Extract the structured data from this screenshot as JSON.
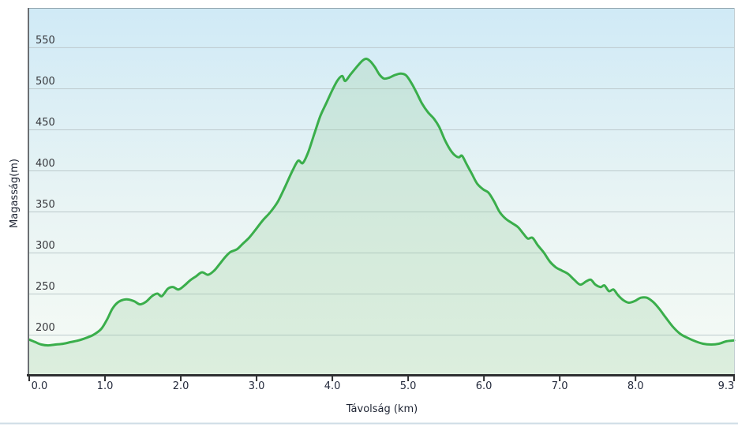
{
  "chart_data": {
    "type": "area",
    "title": "",
    "xlabel": "Távolság (km)",
    "ylabel": "Magasság(m)",
    "x_tick_labels": [
      "0.0",
      "1.0",
      "2.0",
      "3.0",
      "4.0",
      "5.0",
      "6.0",
      "7.0",
      "8.0",
      "9.3"
    ],
    "x_tick_values": [
      0,
      1,
      2,
      3,
      4,
      5,
      6,
      7,
      8,
      9.3
    ],
    "y_tick_values": [
      200,
      250,
      300,
      350,
      400,
      450,
      500,
      550
    ],
    "xlim": [
      0,
      9.3
    ],
    "ylim": [
      152,
      598
    ],
    "grid": "horizontal-only",
    "legend": "none",
    "series": [
      {
        "name": "elevation-profile",
        "points": [
          [
            0.0,
            194
          ],
          [
            0.08,
            191
          ],
          [
            0.16,
            188
          ],
          [
            0.25,
            187
          ],
          [
            0.35,
            188
          ],
          [
            0.45,
            189
          ],
          [
            0.55,
            191
          ],
          [
            0.65,
            193
          ],
          [
            0.75,
            196
          ],
          [
            0.85,
            200
          ],
          [
            0.95,
            207
          ],
          [
            1.03,
            219
          ],
          [
            1.1,
            232
          ],
          [
            1.18,
            240
          ],
          [
            1.28,
            243
          ],
          [
            1.38,
            241
          ],
          [
            1.46,
            237
          ],
          [
            1.54,
            240
          ],
          [
            1.62,
            247
          ],
          [
            1.69,
            250
          ],
          [
            1.75,
            247
          ],
          [
            1.83,
            256
          ],
          [
            1.9,
            258
          ],
          [
            1.97,
            255
          ],
          [
            2.05,
            260
          ],
          [
            2.12,
            266
          ],
          [
            2.2,
            271
          ],
          [
            2.28,
            276
          ],
          [
            2.36,
            273
          ],
          [
            2.44,
            278
          ],
          [
            2.52,
            287
          ],
          [
            2.6,
            296
          ],
          [
            2.66,
            301
          ],
          [
            2.74,
            304
          ],
          [
            2.82,
            311
          ],
          [
            2.9,
            318
          ],
          [
            2.98,
            327
          ],
          [
            3.08,
            339
          ],
          [
            3.18,
            349
          ],
          [
            3.28,
            362
          ],
          [
            3.38,
            381
          ],
          [
            3.48,
            401
          ],
          [
            3.55,
            412
          ],
          [
            3.61,
            409
          ],
          [
            3.68,
            422
          ],
          [
            3.76,
            444
          ],
          [
            3.84,
            466
          ],
          [
            3.92,
            482
          ],
          [
            4.0,
            498
          ],
          [
            4.07,
            510
          ],
          [
            4.13,
            515
          ],
          [
            4.17,
            509
          ],
          [
            4.24,
            517
          ],
          [
            4.32,
            526
          ],
          [
            4.4,
            534
          ],
          [
            4.45,
            536
          ],
          [
            4.5,
            533
          ],
          [
            4.56,
            526
          ],
          [
            4.62,
            517
          ],
          [
            4.68,
            512
          ],
          [
            4.75,
            513
          ],
          [
            4.82,
            516
          ],
          [
            4.9,
            518
          ],
          [
            4.97,
            516
          ],
          [
            5.04,
            507
          ],
          [
            5.11,
            495
          ],
          [
            5.18,
            482
          ],
          [
            5.26,
            471
          ],
          [
            5.34,
            463
          ],
          [
            5.41,
            453
          ],
          [
            5.48,
            438
          ],
          [
            5.55,
            426
          ],
          [
            5.61,
            419
          ],
          [
            5.67,
            416
          ],
          [
            5.71,
            418
          ],
          [
            5.77,
            408
          ],
          [
            5.84,
            396
          ],
          [
            5.91,
            384
          ],
          [
            5.99,
            377
          ],
          [
            6.06,
            373
          ],
          [
            6.13,
            363
          ],
          [
            6.21,
            349
          ],
          [
            6.29,
            341
          ],
          [
            6.37,
            336
          ],
          [
            6.45,
            331
          ],
          [
            6.52,
            323
          ],
          [
            6.58,
            317
          ],
          [
            6.64,
            318
          ],
          [
            6.71,
            309
          ],
          [
            6.79,
            300
          ],
          [
            6.87,
            289
          ],
          [
            6.95,
            282
          ],
          [
            7.03,
            278
          ],
          [
            7.11,
            274
          ],
          [
            7.19,
            267
          ],
          [
            7.27,
            261
          ],
          [
            7.35,
            265
          ],
          [
            7.41,
            267
          ],
          [
            7.47,
            261
          ],
          [
            7.54,
            258
          ],
          [
            7.59,
            260
          ],
          [
            7.65,
            253
          ],
          [
            7.71,
            255
          ],
          [
            7.77,
            248
          ],
          [
            7.84,
            242
          ],
          [
            7.91,
            239
          ],
          [
            7.99,
            241
          ],
          [
            8.07,
            245
          ],
          [
            8.15,
            245
          ],
          [
            8.23,
            240
          ],
          [
            8.31,
            232
          ],
          [
            8.39,
            222
          ],
          [
            8.49,
            210
          ],
          [
            8.59,
            201
          ],
          [
            8.69,
            196
          ],
          [
            8.79,
            192
          ],
          [
            8.89,
            189
          ],
          [
            9.0,
            188
          ],
          [
            9.1,
            189
          ],
          [
            9.2,
            192
          ],
          [
            9.3,
            193
          ]
        ]
      }
    ],
    "colors": {
      "line": "#3aae4b",
      "area_fill": "rgba(160,210,165,0.30)",
      "plot_bg_top": "#d0eaf6",
      "plot_bg_mid": "#e9f4f4",
      "plot_bg_bottom": "#f6fbf5",
      "gridline": "#bcc9cc",
      "axis_left": "#6b6f73",
      "axis_bottom": "#2e2f31",
      "border_top": "#8fa3ab",
      "border_right": "#c2ced2",
      "x_tick_text": "#242a3c",
      "y_tick_text": "#37383c",
      "axis_title_text": "#1e2433",
      "separator": "#cfdde6",
      "page_bg": "#ffffff"
    }
  }
}
